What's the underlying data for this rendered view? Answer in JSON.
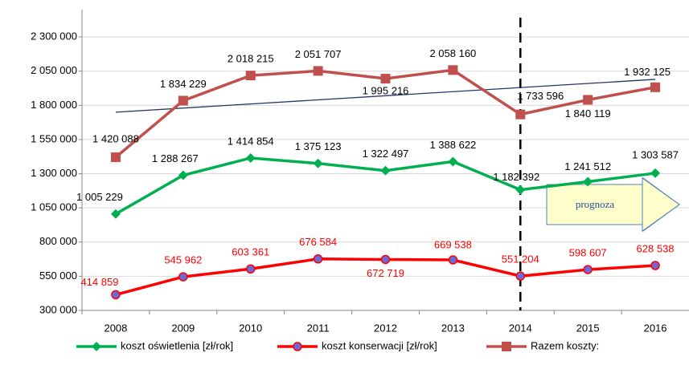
{
  "chart_data": {
    "type": "line",
    "categories": [
      "2008",
      "2009",
      "2010",
      "2011",
      "2012",
      "2013",
      "2014",
      "2015",
      "2016"
    ],
    "series": [
      {
        "name": "koszt oświetlenia [zł/rok]",
        "color": "#00b050",
        "marker": "diamond",
        "values": [
          1005229,
          1288267,
          1414854,
          1375123,
          1322497,
          1388622,
          1182392,
          1241512,
          1303587
        ],
        "value_labels": [
          "1 005 229",
          "1 288 267",
          "1 414 854",
          "1 375 123",
          "1 322 497",
          "1 388 622",
          "1 182 392",
          "1 241 512",
          "1 303 587"
        ],
        "label_color": "#000000"
      },
      {
        "name": "koszt konserwacji [zł/rok]",
        "color": "#ff0000",
        "marker": "circle",
        "values": [
          414859,
          545962,
          603361,
          676584,
          672719,
          669538,
          551204,
          598607,
          628538
        ],
        "value_labels": [
          "414 859",
          "545 962",
          "603 361",
          "676 584",
          "672 719",
          "669 538",
          "551 204",
          "598 607",
          "628 538"
        ],
        "label_color": "#ff0000"
      },
      {
        "name": "Razem koszty:",
        "color": "#c0504d",
        "marker": "square",
        "values": [
          1420088,
          1834229,
          2018215,
          2051707,
          1995216,
          2058160,
          1733596,
          1840119,
          1932125
        ],
        "value_labels": [
          "1 420 088",
          "1 834 229",
          "2 018 215",
          "2 051 707",
          "1 995 216",
          "2 058 160",
          "1 733 596",
          "1 840 119",
          "1 932 125"
        ],
        "label_color": "#000000"
      }
    ],
    "trend": {
      "color": "#1f3864",
      "values": [
        1750000,
        1990000
      ]
    },
    "forecast_from": "2014",
    "annotation": "prognoza",
    "ylim": [
      300000,
      2500000
    ],
    "yticks": [
      {
        "value": 300000,
        "label": "300 000"
      },
      {
        "value": 550000,
        "label": "550 000"
      },
      {
        "value": 800000,
        "label": "800 000"
      },
      {
        "value": 1050000,
        "label": "1 050 000"
      },
      {
        "value": 1300000,
        "label": "1 300 000"
      },
      {
        "value": 1550000,
        "label": "1 550 000"
      },
      {
        "value": 1800000,
        "label": "1 800 000"
      },
      {
        "value": 2050000,
        "label": "2 050 000"
      },
      {
        "value": 2300000,
        "label": "2 300 000"
      }
    ],
    "grid": true,
    "legend": "bottom"
  }
}
